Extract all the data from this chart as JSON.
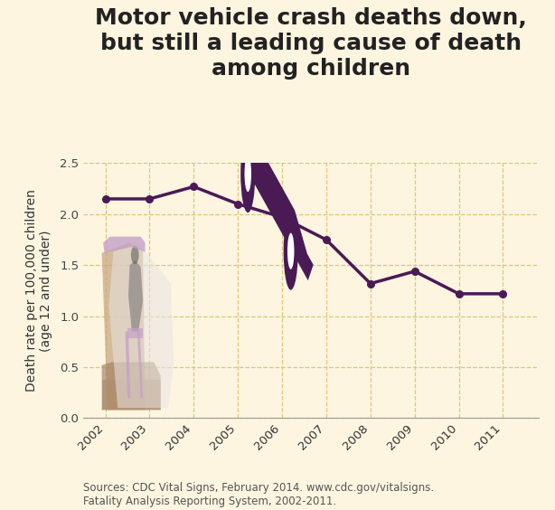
{
  "title_line1": "Motor vehicle crash deaths down,",
  "title_line2": "but still a leading cause of death",
  "title_line3": "among children",
  "years": [
    2002,
    2003,
    2004,
    2005,
    2006,
    2007,
    2008,
    2009,
    2010,
    2011
  ],
  "values": [
    2.15,
    2.15,
    2.27,
    2.1,
    1.97,
    1.75,
    1.32,
    1.44,
    1.22,
    1.22
  ],
  "line_color": "#4a1a55",
  "marker_color": "#4a1a55",
  "background_color": "#fdf5e0",
  "plot_bg_color": "#fdf5e0",
  "grid_color": "#d9c87a",
  "ylabel": "Death rate per 100,000 children\n(age 12 and under)",
  "ylim": [
    0.0,
    2.5
  ],
  "yticks": [
    0.0,
    0.5,
    1.0,
    1.5,
    2.0,
    2.5
  ],
  "xlim": [
    2001.5,
    2011.8
  ],
  "source_text": "Sources: CDC Vital Signs, February 2014. www.cdc.gov/vitalsigns.\nFatality Analysis Reporting System, 2002-2011.",
  "title_fontsize": 18,
  "axis_fontsize": 10,
  "tick_fontsize": 9.5,
  "source_fontsize": 8.5
}
